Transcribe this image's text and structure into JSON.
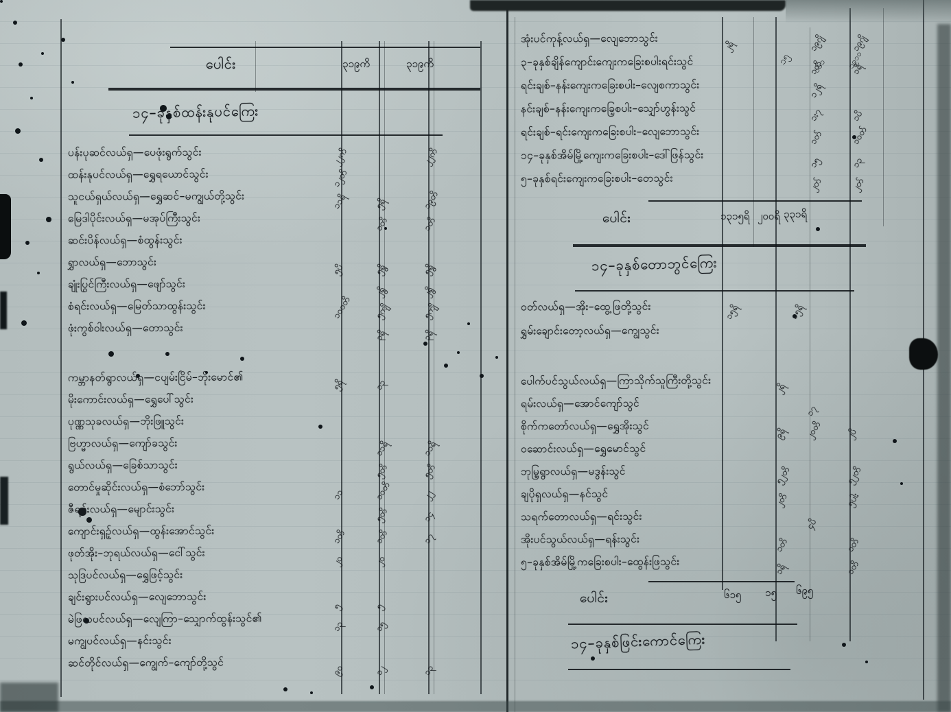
{
  "document": {
    "type": "scanned handwritten palm-tax ledger, Burmese script",
    "paper_color": "#b7c1c1",
    "ink_color": "#14181b"
  },
  "left_page": {
    "header": {
      "total_label": "ပေါင်း",
      "col_1": "၃၁၉ကိ",
      "col_2": "၃၁၉ကိ"
    },
    "section_title": "၁၄–ခုနှစ်ထန်းနုပင်ကြေး",
    "rows_a": [
      {
        "text": "ပန်းပုဆင်လယ်ရှ—ပေဖုံးရွက်သွင်း",
        "v": [
          "၂၂ကိ",
          "",
          "၂၂ကိ"
        ]
      },
      {
        "text": "ထန်းနုပင်လယ်ရှ—ရွှေရယောင်သွင်း",
        "v": [
          "၁၂တိ",
          "",
          ""
        ]
      },
      {
        "text": "သူငယ်ရှယ်လယ်ရှ—ရွှေဆင်–မကျွယ်တို့သွင်း",
        "v": [
          "၁၁ရိ",
          "၅ရိ",
          "၁၉တိ"
        ]
      },
      {
        "text": "မြေဒါပိုင်းလယ်ရှ—မအုပ်ကြီးသွင်း",
        "v": [
          "",
          "၁တိ",
          "၁တိ"
        ]
      },
      {
        "text": "ဆင်းပိန်လယ်ရှ—စံထွန်းသွင်း",
        "v": [
          "",
          "",
          ""
        ]
      },
      {
        "text": "ရွှာလယ်ရှ—ဘောသွင်း",
        "v": [
          "၅ပိ",
          "၅ရွိ",
          "၅ရွိ"
        ]
      },
      {
        "text": "ချုံးပြွင်ကြီးလယ်ရှ—ဖျော်သွင်း",
        "v": [
          "",
          "၂ရွိ",
          "၂ရွိ"
        ]
      },
      {
        "text": "စံရင်းလယ်ရှ—မြေတ်သာထွန်းသွင်း",
        "v": [
          "၁၀၀တိ",
          "၅ကျိ",
          "၅ကျိ"
        ]
      },
      {
        "text": "ဖုံးကွစ်ဝါးလယ်ရှ—တောသွင်း",
        "v": [
          "",
          "၃ရိ",
          "၃ရိ"
        ]
      }
    ],
    "rows_b": [
      {
        "text": "ကမ္ဘာနတ်ရွာလယ်ရှ—ငပျမ်းငြိမ်–ဘိုးမောင်၏",
        "v": [
          "၅ရိ",
          "၁၃",
          ""
        ]
      },
      {
        "text": "မိုးကောင်းလယ်ရှ—ရွှေပေါ်သွင်း",
        "v": [
          "",
          "",
          ""
        ]
      },
      {
        "text": "ပုဏ္ဏသုခလယ်ရှ—ဘိုးဖြူသွင်း",
        "v": [
          "",
          "",
          ""
        ]
      },
      {
        "text": "ဗြဟ္မာလယ်ရှ—ကျော်ခသွင်း",
        "v": [
          "",
          "၁၁ရိ",
          "၁၁ရိ"
        ]
      },
      {
        "text": "ရွယ်လယ်ရှ—ခြေစ်သာသွင်း",
        "v": [
          "",
          "၅တိ",
          "၅တိ"
        ]
      },
      {
        "text": "တောင်မှုဆိုင်းလယ်ရှ—စံဘော်သွင်း",
        "v": [
          "၁၁",
          "၁ဝတိ",
          "၂၂"
        ]
      },
      {
        "text": "ဇီရင်းလယ်ရှ—မျောင်းသွင်း",
        "v": [
          "",
          "၅တိ",
          "၁၄"
        ]
      },
      {
        "text": "ကျောင်းရှဉ့်လယ်ရှ—ထွန်းအောင်သွင်း",
        "v": [
          "၁တိ",
          "၁တိ",
          "၁၇"
        ]
      },
      {
        "text": "ဖုတ်အိုး–ဘုရယ်လယ်ရှ—ငေါ်သွင်း",
        "v": [
          "၂ဝ",
          "၂ဝ",
          ""
        ]
      },
      {
        "text": "သုဒြပင်လယ်ရှ—ရွှေဖြင့်သွင်း",
        "v": [
          "",
          "",
          ""
        ]
      },
      {
        "text": "ချင်းရွားပင်လယ်ရှ—လျေဘောသွင်း",
        "v": [
          "၅",
          "၅",
          ""
        ]
      },
      {
        "text": "မဲဖြလပင်လယ်ရှ—လျေကြာ–သျှောက်ထွန်းသွင်၏",
        "v": [
          "၁၃",
          "၁၅",
          ""
        ]
      },
      {
        "text": "မကျွပင်လယ်ရှ—နင်းသွင်း",
        "v": [
          "",
          "",
          ""
        ]
      },
      {
        "text": "ဆင်တိုင်လယ်ရှ—ကျွေက်–ကျော်တို့သွင်",
        "v": [
          "၉ဝ",
          "၁၂",
          "၁၃"
        ]
      }
    ]
  },
  "right_page": {
    "corner_marks": [
      "၁၅",
      "၁၆၁",
      "၁၉၁ဝ"
    ],
    "rows_a": [
      {
        "text": "အုံးပင်ကုန့်လယ်ရှ—လျေဘောသွင်း",
        "v": [
          "၂ရိ",
          "၁၉ဂျိ",
          "၁၉ဂျိ"
        ]
      },
      {
        "text": "၃–ခုနှစ်ချိန်ကျောင်းကျေးကခြေးစပါးရင်းသွင်",
        "v": [
          "",
          "၁တိ",
          "၁ရိ"
        ]
      },
      {
        "text": "ရင်းချစ်–နန်းကျေးကခြေးစပါး–လျေစကာသွင်း",
        "v": [
          "",
          "၁၂ရိ",
          ""
        ]
      },
      {
        "text": "နင်းချစ်–နန်းကျေးကခြေ့စပါး–သျှော်ဟွန်းသွင်",
        "v": [
          "",
          "၁း၇",
          "၁ပိ"
        ]
      },
      {
        "text": "ရင်းချစ်–ရင်းကျေးကခြေးစပါး–လျေဘောသွင်း",
        "v": [
          "",
          "၁တ်",
          "၁ဝတ်"
        ]
      },
      {
        "text": "၁၄–ခုနှစ်အိမ်မြို့ကျေးကခြေးစပါး–ဒေါ်ဖြန်သွင်း",
        "v": [
          "",
          "၁၅",
          "၁၃"
        ]
      },
      {
        "text": "၅–ခုနှစ်ရင်းကျေးကခြေးစပါး–တေသွင်း",
        "v": [
          "",
          "၂တ်",
          "၂တ်"
        ]
      }
    ],
    "total_1": {
      "label": "ပေါင်း",
      "values": [
        "၁၃၁၅ရိ",
        "၂၀၀ရိ",
        "၃၃၁ရိ"
      ]
    },
    "section_title_2": "၁၄–ခုနှစ်တောဘွင်ကြေး",
    "rows_b": [
      {
        "text": "ဝတ်လယ်ရှ—အိုး–ထွေ့ဖြတို့သွင်း",
        "v": [
          "၁၅ရိ",
          "",
          "၁၅ရိ"
        ]
      },
      {
        "text": "ရွှမ်းချောင်းတော့လယ်ရှ—ကျွေသွင်း",
        "v": [
          "",
          "",
          ""
        ]
      }
    ],
    "rows_c": [
      {
        "text": "ပေါက်ပင်သွယ်လယ်ရှ—ကြာသိုက်သူကြီးတို့သွင်း",
        "v": [
          "၂ရိ",
          "",
          ""
        ]
      },
      {
        "text": "ရမ်းလယ်ရှ—အောင်ကျော်သွင်",
        "v": [
          "",
          "၁၇",
          ""
        ]
      },
      {
        "text": "စိုက်ကတော်လယ်ရှ—ရွှေအိုးသွင်",
        "v": [
          "၉ရိ",
          "၂ဝတိ",
          "၂ပိ"
        ]
      },
      {
        "text": "ဝဆောင်းလယ်ရှ—ရွှေမောင်သွင်",
        "v": [
          "",
          "",
          ""
        ]
      },
      {
        "text": "ဘုမ္မြရွာလယ်ရှ—မဒွန်းသွင်",
        "v": [
          "၅၂တိ",
          "",
          "၅၂တိ"
        ]
      },
      {
        "text": "ချပိုရှလယ်ရှ—နင်သွင်",
        "v": [
          "၂တိ",
          "",
          "၅ပါး"
        ]
      },
      {
        "text": "သရက်တောလယ်ရှ—ရင်းသွင်း",
        "v": [
          "",
          "၄ပိ",
          ""
        ]
      },
      {
        "text": "အိုးပင်သွယ်လယ်ရှ—ရန်းသွင်း",
        "v": [
          "၁တိ",
          "",
          "၁တိ"
        ]
      },
      {
        "text": "၅–ခုနှစ်အိမ်မြို့ကခြေးစပါး–ထွေန်းဖြသွင်း",
        "v": [
          "၁ရိ",
          "",
          "၁တိ"
        ]
      }
    ],
    "total_2": {
      "label": "ပေါင်း",
      "values": [
        "၆၁၅",
        "၁၅",
        "၆၉၅"
      ]
    },
    "section_title_3": "၁၄–ခုနှစ်ဖြင်းကောင်ကြေး"
  }
}
